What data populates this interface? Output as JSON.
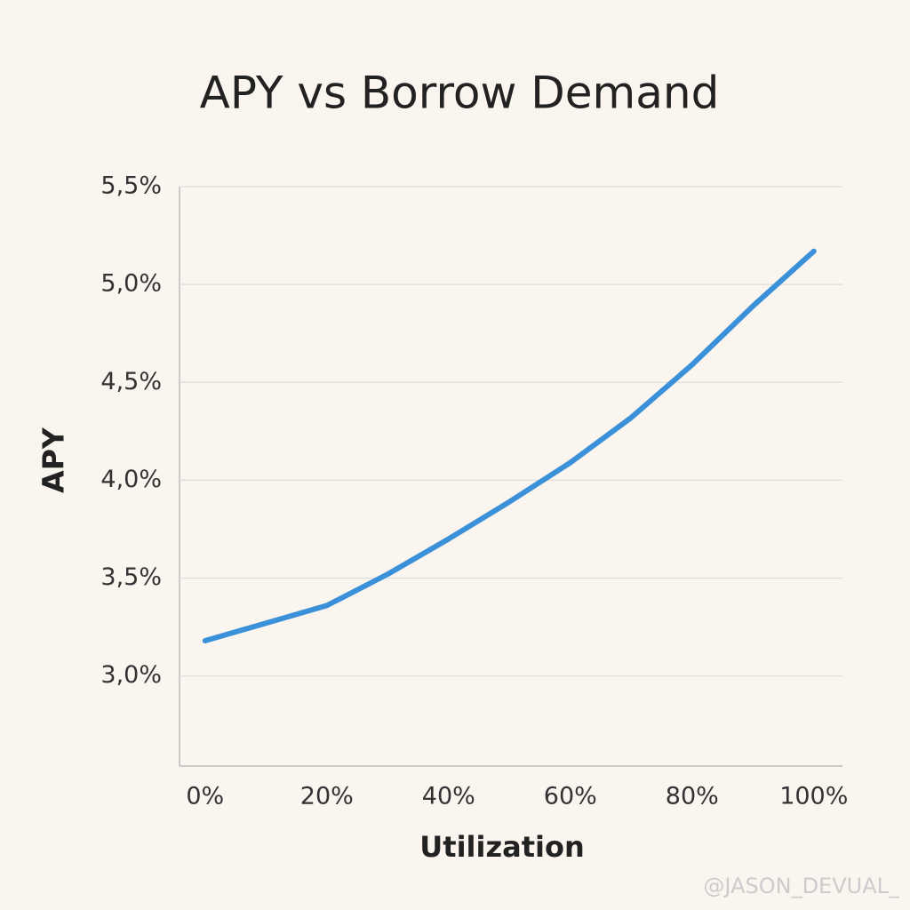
{
  "chart_data": {
    "type": "line",
    "title": "APY vs Borrow Demand",
    "x_label": "Utilization",
    "y_label": "APY",
    "x": [
      0,
      10,
      20,
      30,
      40,
      50,
      60,
      70,
      80,
      90,
      100
    ],
    "series": [
      {
        "name": "APY",
        "color": "#3b91d9",
        "values": [
          3.18,
          3.27,
          3.36,
          3.52,
          3.7,
          3.89,
          4.09,
          4.32,
          4.59,
          4.89,
          5.17
        ]
      }
    ],
    "xlim": [
      -4.2,
      104.7
    ],
    "xticks": [
      {
        "value": 0,
        "label": "0%"
      },
      {
        "value": 20,
        "label": "20%"
      },
      {
        "value": 40,
        "label": "40%"
      },
      {
        "value": 60,
        "label": "60%"
      },
      {
        "value": 80,
        "label": "80%"
      },
      {
        "value": 100,
        "label": "100%"
      }
    ],
    "ylim": [
      2.54,
      5.5
    ],
    "yticks": [
      {
        "value": 3.0,
        "label": "3,0%"
      },
      {
        "value": 3.5,
        "label": "3,5%"
      },
      {
        "value": 4.0,
        "label": "4,0%"
      },
      {
        "value": 4.5,
        "label": "4,5%"
      },
      {
        "value": 5.0,
        "label": "5,0%"
      },
      {
        "value": 5.5,
        "label": "5,5%"
      }
    ],
    "grid": true,
    "watermark": "@JASON_DEVUAL_"
  }
}
